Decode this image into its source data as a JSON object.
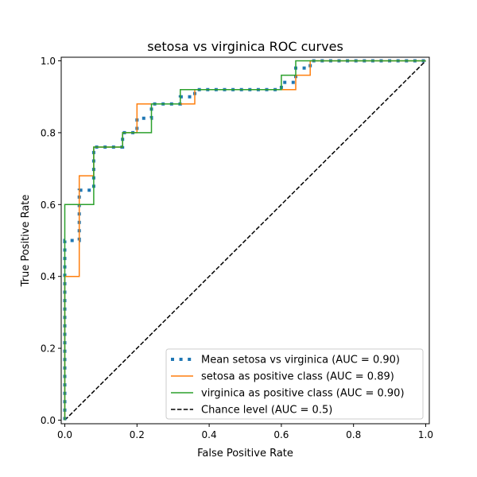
{
  "chart_data": {
    "type": "line",
    "title": "setosa vs virginica ROC curves",
    "xlabel": "False Positive Rate",
    "ylabel": "True Positive Rate",
    "xlim": [
      -0.01,
      1.01
    ],
    "ylim": [
      -0.01,
      1.01
    ],
    "xticks": [
      "0.0",
      "0.2",
      "0.4",
      "0.6",
      "0.8",
      "1.0"
    ],
    "yticks": [
      "0.0",
      "0.2",
      "0.4",
      "0.6",
      "0.8",
      "1.0"
    ],
    "grid": false,
    "legend_placement": "lower-right",
    "series": [
      {
        "name": "Mean setosa vs virginica (AUC = 0.90)",
        "color": "#1f77b4",
        "style": "dotted",
        "x": [
          0,
          0,
          0.04,
          0.04,
          0.08,
          0.08,
          0.16,
          0.16,
          0.2,
          0.2,
          0.24,
          0.24,
          0.32,
          0.32,
          0.36,
          0.36,
          0.6,
          0.6,
          0.64,
          0.64,
          0.68,
          0.68,
          1
        ],
        "y": [
          0,
          0.5,
          0.5,
          0.64,
          0.64,
          0.76,
          0.76,
          0.8,
          0.8,
          0.84,
          0.84,
          0.88,
          0.88,
          0.9,
          0.9,
          0.92,
          0.92,
          0.94,
          0.94,
          0.98,
          0.98,
          1,
          1
        ]
      },
      {
        "name": "setosa as positive class (AUC = 0.89)",
        "color": "#ff7f0e",
        "style": "solid",
        "x": [
          0,
          0,
          0.04,
          0.04,
          0.08,
          0.08,
          0.16,
          0.16,
          0.2,
          0.2,
          0.36,
          0.36,
          0.64,
          0.64,
          0.68,
          0.68,
          1
        ],
        "y": [
          0,
          0.4,
          0.4,
          0.68,
          0.68,
          0.76,
          0.76,
          0.8,
          0.8,
          0.88,
          0.88,
          0.92,
          0.92,
          0.96,
          0.96,
          1,
          1
        ]
      },
      {
        "name": "virginica as positive class (AUC = 0.90)",
        "color": "#2ca02c",
        "style": "solid",
        "x": [
          0,
          0,
          0.08,
          0.08,
          0.16,
          0.16,
          0.24,
          0.24,
          0.32,
          0.32,
          0.6,
          0.6,
          0.64,
          0.64,
          1
        ],
        "y": [
          0,
          0.6,
          0.6,
          0.76,
          0.76,
          0.8,
          0.8,
          0.88,
          0.88,
          0.92,
          0.92,
          0.96,
          0.96,
          1,
          1
        ]
      },
      {
        "name": "Chance level (AUC = 0.5)",
        "color": "#000000",
        "style": "dashed",
        "x": [
          0,
          1
        ],
        "y": [
          0,
          1
        ]
      }
    ]
  }
}
